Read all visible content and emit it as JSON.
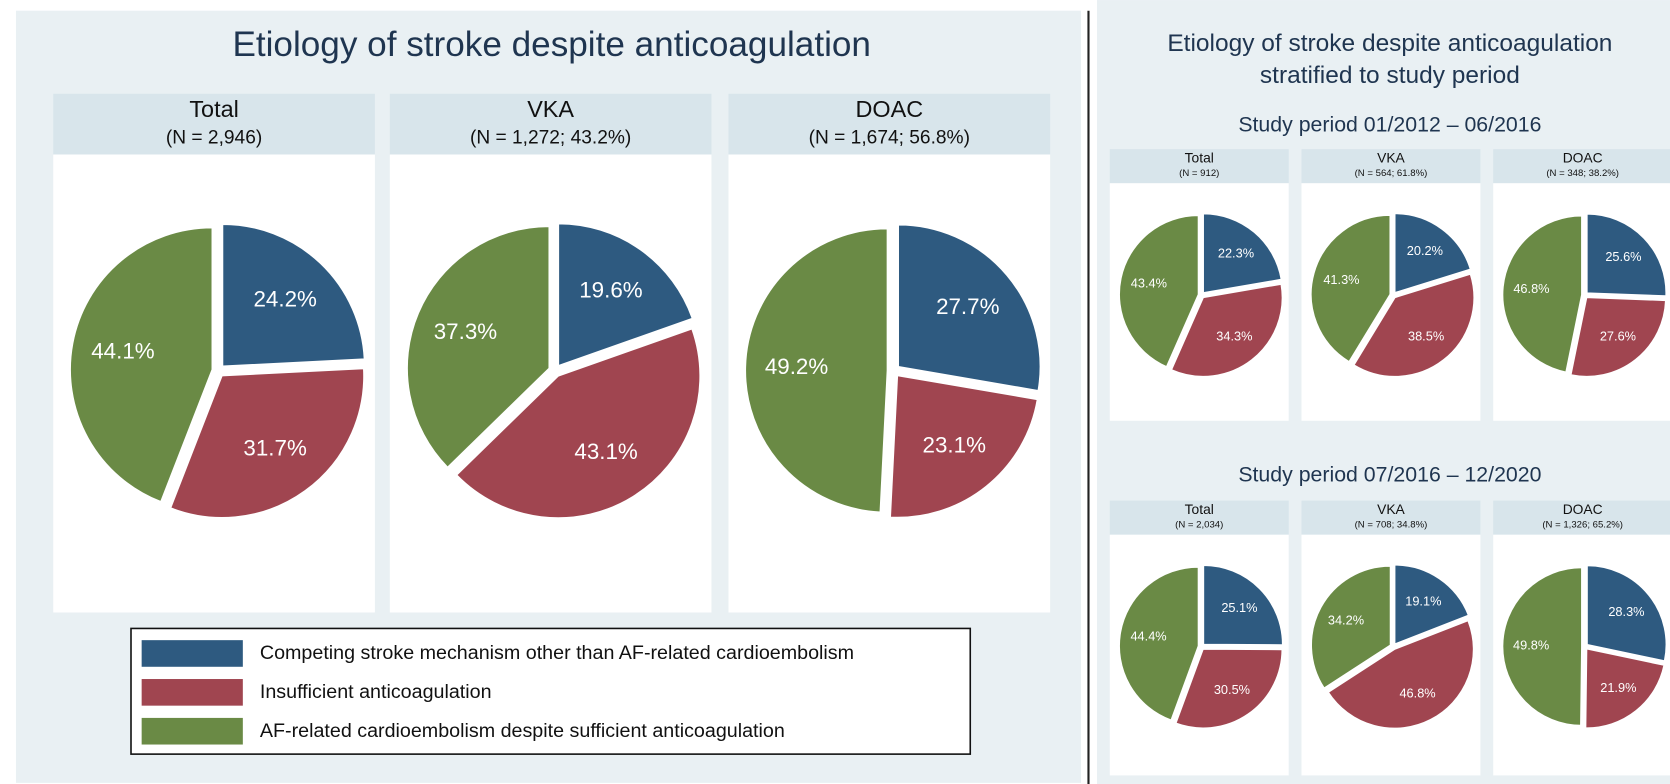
{
  "main_title": "Etiology of stroke despite anticoagulation",
  "side_title_lines": [
    "Etiology of stroke despite anticoagulation",
    "stratified to study period"
  ],
  "period_titles": [
    "Study period 01/2012 – 06/2016",
    "Study period 07/2016 – 12/2020"
  ],
  "legend": [
    "Competing stroke mechanism other than AF-related cardioembolism",
    "Insufficient anticoagulation",
    "AF-related cardioembolism despite sufficient anticoagulation"
  ],
  "chart_data": [
    {
      "type": "pie",
      "title": "Total",
      "subtitle": "(N = 2,946)",
      "values": [
        24.2,
        31.7,
        44.1
      ],
      "value_labels": [
        "24.2%",
        "31.7%",
        "44.1%"
      ],
      "colors": [
        "#2e5a80",
        "#a04550",
        "#6a8a45"
      ]
    },
    {
      "type": "pie",
      "title": "VKA",
      "subtitle": "(N = 1,272; 43.2%)",
      "values": [
        19.6,
        43.1,
        37.3
      ],
      "value_labels": [
        "19.6%",
        "43.1%",
        "37.3%"
      ],
      "colors": [
        "#2e5a80",
        "#a04550",
        "#6a8a45"
      ]
    },
    {
      "type": "pie",
      "title": "DOAC",
      "subtitle": "(N = 1,674; 56.8%)",
      "values": [
        27.7,
        23.1,
        49.2
      ],
      "value_labels": [
        "27.7%",
        "23.1%",
        "49.2%"
      ],
      "colors": [
        "#2e5a80",
        "#a04550",
        "#6a8a45"
      ]
    },
    {
      "type": "pie",
      "title": "Total",
      "subtitle": "(N = 912)",
      "values": [
        22.3,
        34.3,
        43.4
      ],
      "value_labels": [
        "22.3%",
        "34.3%",
        "43.4%"
      ],
      "colors": [
        "#2e5a80",
        "#a04550",
        "#6a8a45"
      ]
    },
    {
      "type": "pie",
      "title": "VKA",
      "subtitle": "(N = 564; 61.8%)",
      "values": [
        20.2,
        38.5,
        41.3
      ],
      "value_labels": [
        "20.2%",
        "38.5%",
        "41.3%"
      ],
      "colors": [
        "#2e5a80",
        "#a04550",
        "#6a8a45"
      ]
    },
    {
      "type": "pie",
      "title": "DOAC",
      "subtitle": "(N = 348; 38.2%)",
      "values": [
        25.6,
        27.6,
        46.8
      ],
      "value_labels": [
        "25.6%",
        "27.6%",
        "46.8%"
      ],
      "colors": [
        "#2e5a80",
        "#a04550",
        "#6a8a45"
      ]
    },
    {
      "type": "pie",
      "title": "Total",
      "subtitle": "(N = 2,034)",
      "values": [
        25.1,
        30.5,
        44.4
      ],
      "value_labels": [
        "25.1%",
        "30.5%",
        "44.4%"
      ],
      "colors": [
        "#2e5a80",
        "#a04550",
        "#6a8a45"
      ]
    },
    {
      "type": "pie",
      "title": "VKA",
      "subtitle": "(N = 708; 34.8%)",
      "values": [
        19.1,
        46.8,
        34.2
      ],
      "value_labels": [
        "19.1%",
        "46.8%",
        "34.2%"
      ],
      "colors": [
        "#2e5a80",
        "#a04550",
        "#6a8a45"
      ]
    },
    {
      "type": "pie",
      "title": "DOAC",
      "subtitle": "(N = 1,326; 65.2%)",
      "values": [
        28.3,
        21.9,
        49.8
      ],
      "value_labels": [
        "28.3%",
        "21.9%",
        "49.8%"
      ],
      "colors": [
        "#2e5a80",
        "#a04550",
        "#6a8a45"
      ]
    }
  ]
}
